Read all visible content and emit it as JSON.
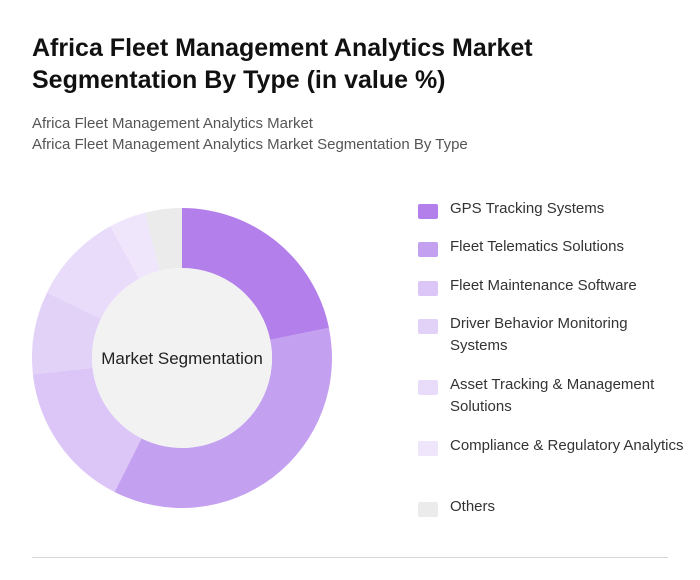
{
  "header": {
    "title": "Africa Fleet Management Analytics Market Segmentation By Type (in value %)",
    "subtitle_line1": "Africa Fleet Management Analytics Market",
    "subtitle_line2": "Africa Fleet Management Analytics Market Segmentation By Type"
  },
  "chart_data": {
    "type": "pie",
    "style": "donut",
    "center_label": "Market Segmentation",
    "legend_position": "right",
    "categories": [
      "GPS Tracking Systems",
      "Fleet Telematics Solutions",
      "Fleet Maintenance Software",
      "Driver Behavior Monitoring Systems",
      "Asset Tracking & Management Solutions",
      "Compliance & Regulatory Analytics",
      "Others"
    ],
    "values": [
      22,
      36,
      16,
      9,
      10,
      4,
      4
    ],
    "colors": [
      "#b37fea",
      "#c4a0f0",
      "#dcc6f7",
      "#e2d2f8",
      "#e8dcfa",
      "#efe6fb",
      "#ebebeb"
    ]
  }
}
